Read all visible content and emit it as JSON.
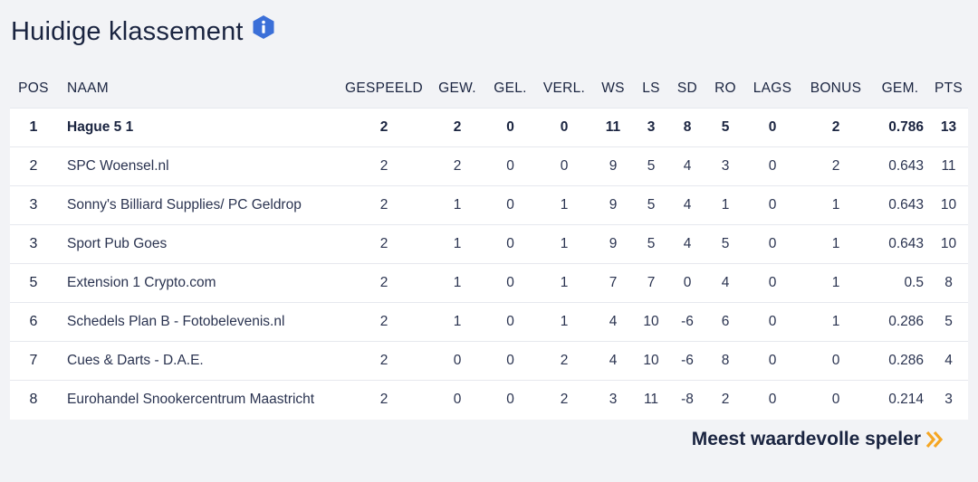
{
  "title": "Huidige klassement",
  "icons": {
    "info": "info-icon",
    "chevron": "double-chevron-right-icon",
    "accent_color": "#3b6fd8",
    "chevron_color": "#f5a623"
  },
  "table": {
    "headers": {
      "pos": "POS",
      "naam": "NAAM",
      "gespeeld": "GESPEELD",
      "gew": "GEW.",
      "gel": "GEL.",
      "verl": "VERL.",
      "ws": "WS",
      "ls": "LS",
      "sd": "SD",
      "ro": "RO",
      "lags": "LAGS",
      "bonus": "BONUS",
      "gem": "GEM.",
      "pts": "PTS"
    },
    "rows": [
      {
        "pos": "1",
        "naam": "Hague 5 1",
        "gespeeld": "2",
        "gew": "2",
        "gel": "0",
        "verl": "0",
        "ws": "11",
        "ls": "3",
        "sd": "8",
        "ro": "5",
        "lags": "0",
        "bonus": "2",
        "gem": "0.786",
        "pts": "13"
      },
      {
        "pos": "2",
        "naam": "SPC Woensel.nl",
        "gespeeld": "2",
        "gew": "2",
        "gel": "0",
        "verl": "0",
        "ws": "9",
        "ls": "5",
        "sd": "4",
        "ro": "3",
        "lags": "0",
        "bonus": "2",
        "gem": "0.643",
        "pts": "11"
      },
      {
        "pos": "3",
        "naam": "Sonny's Billiard Supplies/ PC Geldrop",
        "gespeeld": "2",
        "gew": "1",
        "gel": "0",
        "verl": "1",
        "ws": "9",
        "ls": "5",
        "sd": "4",
        "ro": "1",
        "lags": "0",
        "bonus": "1",
        "gem": "0.643",
        "pts": "10"
      },
      {
        "pos": "3",
        "naam": "Sport Pub Goes",
        "gespeeld": "2",
        "gew": "1",
        "gel": "0",
        "verl": "1",
        "ws": "9",
        "ls": "5",
        "sd": "4",
        "ro": "5",
        "lags": "0",
        "bonus": "1",
        "gem": "0.643",
        "pts": "10"
      },
      {
        "pos": "5",
        "naam": "Extension 1 Crypto.com",
        "gespeeld": "2",
        "gew": "1",
        "gel": "0",
        "verl": "1",
        "ws": "7",
        "ls": "7",
        "sd": "0",
        "ro": "4",
        "lags": "0",
        "bonus": "1",
        "gem": "0.5",
        "pts": "8"
      },
      {
        "pos": "6",
        "naam": "Schedels Plan B - Fotobelevenis.nl",
        "gespeeld": "2",
        "gew": "1",
        "gel": "0",
        "verl": "1",
        "ws": "4",
        "ls": "10",
        "sd": "-6",
        "ro": "6",
        "lags": "0",
        "bonus": "1",
        "gem": "0.286",
        "pts": "5"
      },
      {
        "pos": "7",
        "naam": "Cues & Darts - D.A.E.",
        "gespeeld": "2",
        "gew": "0",
        "gel": "0",
        "verl": "2",
        "ws": "4",
        "ls": "10",
        "sd": "-6",
        "ro": "8",
        "lags": "0",
        "bonus": "0",
        "gem": "0.286",
        "pts": "4"
      },
      {
        "pos": "8",
        "naam": "Eurohandel Snookercentrum Maastricht",
        "gespeeld": "2",
        "gew": "0",
        "gel": "0",
        "verl": "2",
        "ws": "3",
        "ls": "11",
        "sd": "-8",
        "ro": "2",
        "lags": "0",
        "bonus": "0",
        "gem": "0.214",
        "pts": "3"
      }
    ]
  },
  "mvp_link": {
    "label": "Meest waardevolle speler"
  }
}
